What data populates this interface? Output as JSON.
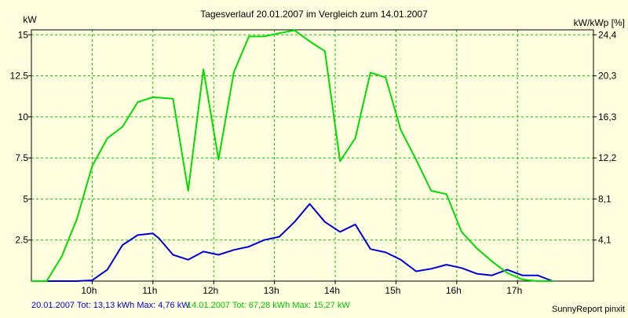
{
  "chart_data": {
    "type": "line",
    "title": "Tagesverlauf 20.01.2007 im Vergleich zum 14.01.2007",
    "y_left_label": "kW",
    "y_right_label": "kW/kWp [%]",
    "y_left_ticks": [
      "2.5",
      "5",
      "7.5",
      "10",
      "12.5",
      "15"
    ],
    "y_left_values": [
      2.5,
      5,
      7.5,
      10,
      12.5,
      15
    ],
    "y_right_ticks": [
      "4,1",
      "8,1",
      "12,2",
      "16,3",
      "20,3",
      "24,4"
    ],
    "ylim": [
      0,
      15.3
    ],
    "x_ticks": [
      "10h",
      "11h",
      "12h",
      "13h",
      "14h",
      "15h",
      "16h",
      "17h"
    ],
    "x_tick_hours": [
      10,
      11,
      12,
      13,
      14,
      15,
      16,
      17
    ],
    "xlim": [
      9.0,
      18.25
    ],
    "grid": true,
    "series": [
      {
        "name": "20.01.2007",
        "color": "#0000dd",
        "x": [
          9.25,
          9.5,
          9.75,
          10.0,
          10.25,
          10.5,
          10.75,
          11.0,
          11.1,
          11.33,
          11.58,
          11.83,
          12.08,
          12.33,
          12.58,
          12.83,
          13.08,
          13.33,
          13.58,
          13.83,
          14.08,
          14.33,
          14.58,
          14.83,
          15.08,
          15.33,
          15.58,
          15.83,
          16.08,
          16.33,
          16.58,
          16.83,
          17.08,
          17.33,
          17.58
        ],
        "values": [
          0.0,
          0.0,
          0.0,
          0.05,
          0.7,
          2.2,
          2.8,
          2.9,
          2.6,
          1.6,
          1.3,
          1.8,
          1.6,
          1.9,
          2.1,
          2.5,
          2.7,
          3.6,
          4.7,
          3.6,
          3.0,
          3.45,
          1.95,
          1.75,
          1.3,
          0.6,
          0.75,
          1.0,
          0.8,
          0.45,
          0.35,
          0.7,
          0.35,
          0.35,
          0.0
        ]
      },
      {
        "name": "14.01.2007",
        "color": "#00dd00",
        "x": [
          9.25,
          9.5,
          9.75,
          10.0,
          10.25,
          10.5,
          10.75,
          11.0,
          11.33,
          11.58,
          11.83,
          12.08,
          12.33,
          12.58,
          12.83,
          13.08,
          13.33,
          13.58,
          13.83,
          14.08,
          14.33,
          14.58,
          14.83,
          15.08,
          15.33,
          15.58,
          15.83,
          16.08,
          16.33,
          16.58,
          16.83,
          17.08,
          17.33,
          17.58
        ],
        "values": [
          0.0,
          1.5,
          3.8,
          7.0,
          8.7,
          9.4,
          10.9,
          11.2,
          11.1,
          5.5,
          12.9,
          7.4,
          12.7,
          14.9,
          14.9,
          15.1,
          15.27,
          14.6,
          14.0,
          7.3,
          8.7,
          12.7,
          12.4,
          9.2,
          7.4,
          5.5,
          5.3,
          3.0,
          2.0,
          1.2,
          0.5,
          0.1,
          0.0,
          0.0
        ]
      }
    ],
    "legend_left": "20.01.2007 Tot: 13,13 kWh Max: 4,76 kW",
    "legend_right": "14.01.2007 Tot: 67,28 kWh Max: 15,27 kW",
    "footer_credit": "SunnyReport pinxit",
    "colors": {
      "background": "#ffffe0",
      "grid": "#00c800",
      "axis": "#000000"
    }
  }
}
